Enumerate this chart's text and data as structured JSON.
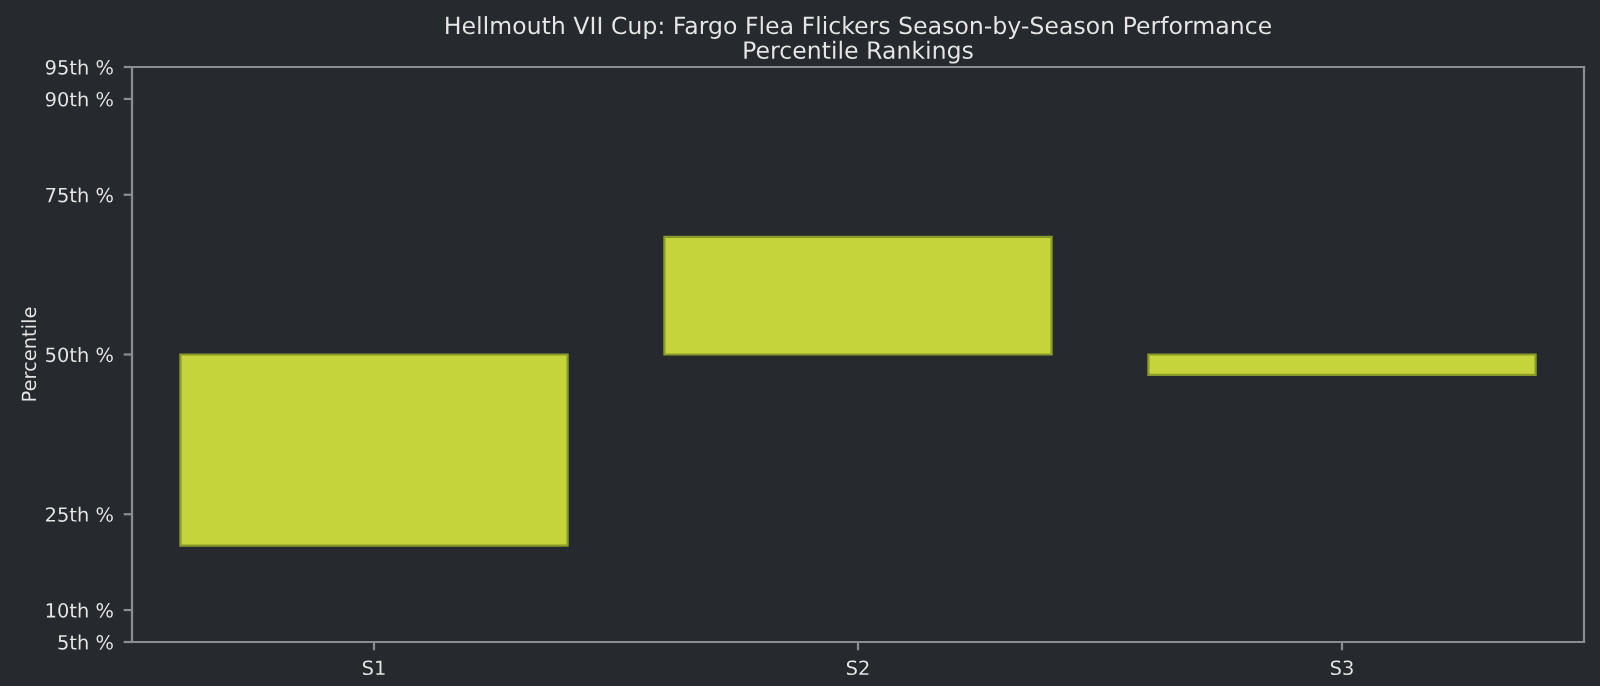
{
  "chart_data": {
    "type": "bar",
    "title": "Hellmouth VII Cup: Fargo Flea Flickers Season-by-Season Performance\nPercentile Rankings",
    "ylabel": "Percentile",
    "categories": [
      "S1",
      "S2",
      "S3"
    ],
    "base": [
      50,
      50,
      50
    ],
    "values": [
      -29.9,
      18.4,
      -3.2
    ],
    "color": "#c5d43b",
    "ylim": [
      5,
      95
    ],
    "yticks": [
      {
        "value": 5,
        "label": "5th %"
      },
      {
        "value": 10,
        "label": "10th %"
      },
      {
        "value": 25,
        "label": "25th %"
      },
      {
        "value": 50,
        "label": "50th %"
      },
      {
        "value": 75,
        "label": "75th %"
      },
      {
        "value": 90,
        "label": "90th %"
      },
      {
        "value": 95,
        "label": "95th %"
      }
    ],
    "grid": false,
    "legend": false
  }
}
